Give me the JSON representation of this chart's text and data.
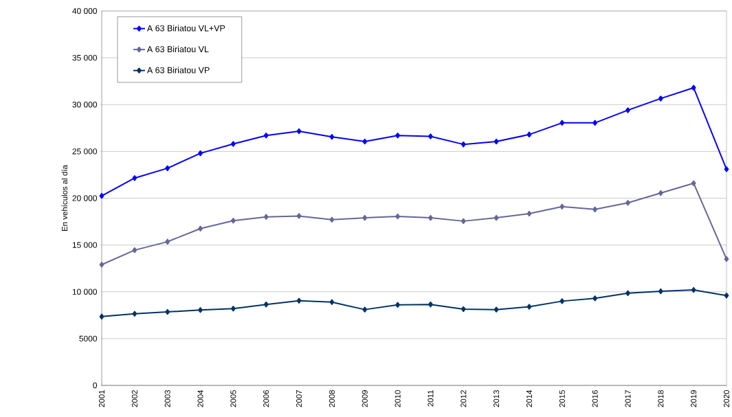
{
  "chart_data": {
    "type": "line",
    "ylabel": "En vehículos al día",
    "categories": [
      "2001",
      "2002",
      "2003",
      "2004",
      "2005",
      "2006",
      "2007",
      "2008",
      "2009",
      "2010",
      "2011",
      "2012",
      "2013",
      "2014",
      "2015",
      "2016",
      "2017",
      "2018",
      "2019",
      "2020"
    ],
    "series": [
      {
        "name": "A 63 Biriatou VL+VP",
        "color": "#0000ff",
        "values": [
          20250,
          22150,
          23200,
          24800,
          25800,
          26700,
          27150,
          26550,
          26050,
          26700,
          26600,
          25750,
          26050,
          26800,
          28050,
          28050,
          29400,
          30650,
          31800,
          23100
        ]
      },
      {
        "name": "A 63 Biriatou VL",
        "color": "#666699",
        "values": [
          12900,
          14450,
          15350,
          16750,
          17600,
          18000,
          18100,
          17700,
          17900,
          18050,
          17900,
          17550,
          17900,
          18350,
          19100,
          18800,
          19500,
          20550,
          21600,
          13500
        ]
      },
      {
        "name": "A 63 Biriatou VP",
        "color": "#003366",
        "values": [
          7350,
          7650,
          7850,
          8050,
          8200,
          8650,
          9050,
          8900,
          8100,
          8600,
          8650,
          8150,
          8100,
          8400,
          9000,
          9300,
          9850,
          10050,
          10200,
          9600
        ]
      }
    ],
    "ylim": [
      0,
      40000
    ],
    "yticks": [
      {
        "value": 0,
        "label": "0"
      },
      {
        "value": 5000,
        "label": "5000"
      },
      {
        "value": 10000,
        "label": "10 000"
      },
      {
        "value": 15000,
        "label": "15 000"
      },
      {
        "value": 20000,
        "label": "20 000"
      },
      {
        "value": 25000,
        "label": "25 000"
      },
      {
        "value": 30000,
        "label": "30 000"
      },
      {
        "value": 35000,
        "label": "35 000"
      },
      {
        "value": 40000,
        "label": "40 000"
      }
    ],
    "grid": "y",
    "legend": "top left",
    "marker": "diamond",
    "line_style": "solid"
  }
}
